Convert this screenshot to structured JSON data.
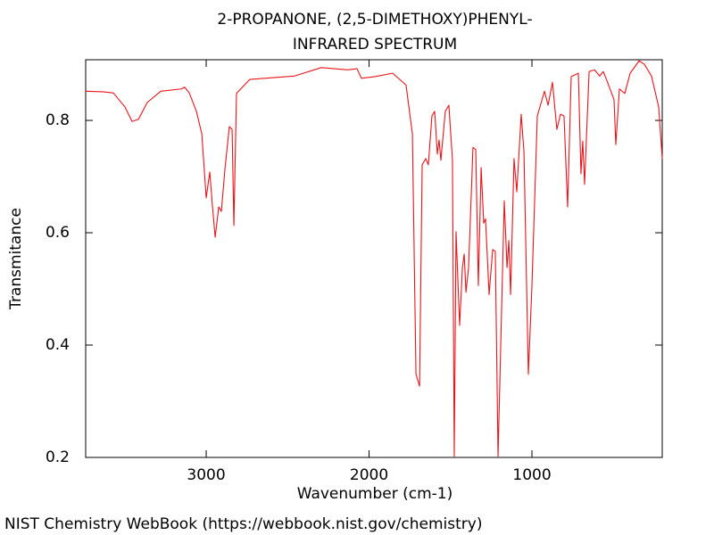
{
  "chart_data": {
    "type": "line",
    "title": "2-PROPANONE, (2,5-DIMETHOXY)PHENYL-",
    "subtitle": "INFRARED SPECTRUM",
    "x_label": "Wavenumber (cm-1)",
    "y_label": "Transmitance",
    "footer": "NIST Chemistry WebBook (https://webbook.nist.gov/chemistry)",
    "xlim": [
      3740,
      200
    ],
    "ylim": [
      0.2,
      0.908
    ],
    "xticks": [
      3000,
      2000,
      1000
    ],
    "yticks": [
      0.2,
      0.4,
      0.6,
      0.8
    ],
    "series": [
      {
        "color": "#e8141a",
        "x": [
          3740,
          3636,
          3570,
          3499,
          3455,
          3416,
          3362,
          3279,
          3153,
          3132,
          3104,
          3060,
          3027,
          3000,
          2978,
          2962,
          2945,
          2923,
          2907,
          2885,
          2858,
          2841,
          2830,
          2814,
          2732,
          2458,
          2293,
          2129,
          2074,
          2047,
          1964,
          1855,
          1773,
          1734,
          1712,
          1690,
          1674,
          1652,
          1636,
          1614,
          1597,
          1581,
          1570,
          1559,
          1532,
          1510,
          1488,
          1477,
          1466,
          1444,
          1427,
          1416,
          1405,
          1389,
          1362,
          1345,
          1329,
          1312,
          1296,
          1285,
          1263,
          1241,
          1225,
          1208,
          1192,
          1170,
          1153,
          1142,
          1131,
          1110,
          1093,
          1066,
          1049,
          1022,
          1000,
          967,
          923,
          901,
          874,
          847,
          825,
          803,
          781,
          759,
          737,
          715,
          699,
          688,
          677,
          649,
          616,
          584,
          562,
          540,
          496,
          485,
          463,
          430,
          397,
          342,
          310,
          266,
          222,
          200
        ],
        "values": [
          0.852,
          0.851,
          0.849,
          0.824,
          0.798,
          0.802,
          0.832,
          0.852,
          0.856,
          0.859,
          0.849,
          0.816,
          0.776,
          0.662,
          0.708,
          0.649,
          0.592,
          0.646,
          0.638,
          0.713,
          0.789,
          0.784,
          0.613,
          0.848,
          0.873,
          0.879,
          0.894,
          0.89,
          0.892,
          0.875,
          0.878,
          0.884,
          0.863,
          0.776,
          0.348,
          0.327,
          0.721,
          0.732,
          0.721,
          0.808,
          0.816,
          0.74,
          0.765,
          0.729,
          0.816,
          0.827,
          0.729,
          0.202,
          0.602,
          0.435,
          0.538,
          0.562,
          0.494,
          0.538,
          0.752,
          0.748,
          0.506,
          0.716,
          0.617,
          0.625,
          0.49,
          0.57,
          0.567,
          0.202,
          0.395,
          0.657,
          0.538,
          0.586,
          0.49,
          0.732,
          0.673,
          0.811,
          0.744,
          0.348,
          0.506,
          0.808,
          0.852,
          0.827,
          0.868,
          0.784,
          0.811,
          0.808,
          0.646,
          0.878,
          0.881,
          0.884,
          0.705,
          0.763,
          0.686,
          0.887,
          0.89,
          0.879,
          0.887,
          0.871,
          0.837,
          0.757,
          0.856,
          0.848,
          0.884,
          0.906,
          0.9,
          0.879,
          0.824,
          0.732
        ]
      }
    ]
  }
}
